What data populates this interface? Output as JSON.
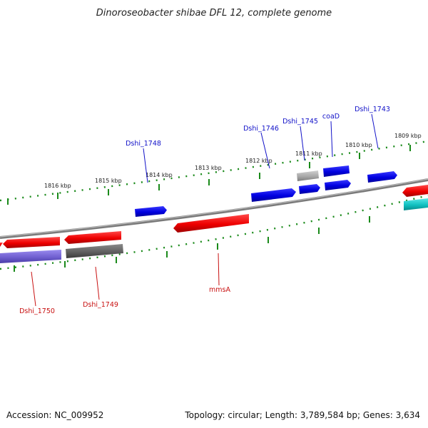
{
  "title": "Dinoroseobacter shibae DFL 12, complete genome",
  "footer": {
    "accession": "Accession: NC_009952",
    "summary": "Topology: circular; Length: 3,789,584 bp; Genes: 3,634"
  },
  "colors": {
    "backbone": "#808080",
    "tick": "#1a8a1a",
    "gene_blue": "#0000e0",
    "gene_red": "#ee0000",
    "gene_grey": "#606060",
    "gene_lightgrey": "#a8a8a8",
    "gene_purple": "#7060d0",
    "gene_cyan": "#10c0c0",
    "label_blue": "#1010c8",
    "label_red": "#c81010"
  },
  "kbp_labels": [
    "1816 kbp",
    "1815 kbp",
    "1814 kbp",
    "1813 kbp",
    "1812 kbp",
    "1811 kbp",
    "1810 kbp",
    "1809 kbp"
  ],
  "gene_labels_top": [
    "Dshi_1748",
    "Dshi_1746",
    "Dshi_1745",
    "coaD",
    "Dshi_1743"
  ],
  "gene_labels_bottom": [
    "Dshi_1750",
    "Dshi_1749",
    "mmsA"
  ]
}
